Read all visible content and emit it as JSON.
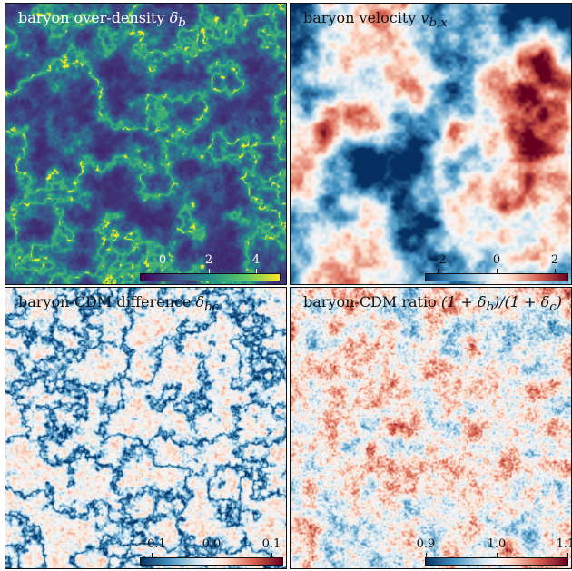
{
  "panels": [
    {
      "id": "density",
      "title_text": "baryon over-density ",
      "title_math": "δ",
      "title_sub": "b",
      "title_tail": "",
      "colormap": "viridis",
      "colorbar": {
        "ticks": [
          "0",
          "2",
          "4"
        ],
        "range": [
          -0.9,
          5.2
        ]
      },
      "text_color": "light"
    },
    {
      "id": "velocity",
      "title_text": "baryon velocity ",
      "title_math": "v",
      "title_sub": "b,x",
      "title_tail": "",
      "colormap": "RdBu_r",
      "colorbar": {
        "ticks": [
          "−2",
          "0",
          "2"
        ],
        "range": [
          -2.5,
          2.5
        ]
      },
      "text_color": "dark"
    },
    {
      "id": "difference",
      "title_text": "baryon-CDM difference ",
      "title_math": "δ",
      "title_sub": "bc",
      "title_tail": "",
      "colormap": "RdBu_r",
      "colorbar": {
        "ticks": [
          "−0.1",
          "0.0",
          "0.1"
        ],
        "range": [
          -0.12,
          0.12
        ]
      },
      "text_color": "dark"
    },
    {
      "id": "ratio",
      "title_text": "baryon-CDM ratio ",
      "title_math": "(1 + δ",
      "title_sub": "b",
      "title_tail": ")/(1 + δ_c)",
      "colormap": "RdBu_r",
      "colorbar": {
        "ticks": [
          "0.9",
          "1.0",
          "1.1"
        ],
        "range": [
          0.9,
          1.1
        ]
      },
      "text_color": "dark"
    }
  ]
}
